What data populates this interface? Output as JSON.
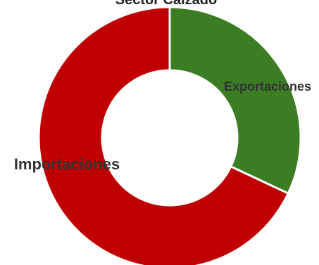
{
  "chart_data": {
    "type": "pie",
    "subtype": "donut",
    "title": "Sector Calzado",
    "slices": [
      {
        "label": "Exportaciones",
        "value": 32,
        "color": "#3a7d23"
      },
      {
        "label": "Importaciones",
        "value": 68,
        "color": "#c00000"
      }
    ],
    "legend": "none"
  }
}
